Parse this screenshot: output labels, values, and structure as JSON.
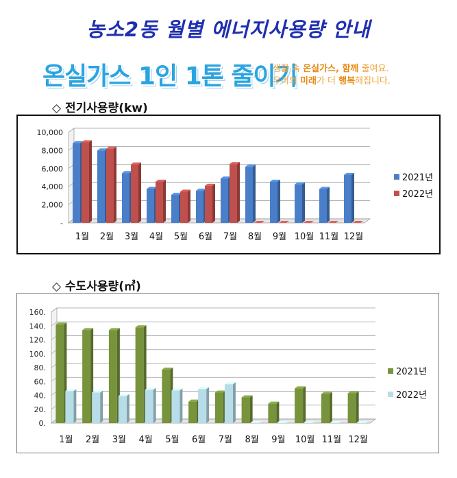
{
  "header": {
    "title": "농소2동 월별 에너지사용량 안내",
    "slogan": "온실가스 1인 1톤 줄이기",
    "slogan_sub_line1_a": "생활 속 ",
    "slogan_sub_line1_b": "온실가스, 함께",
    "slogan_sub_line1_c": " 줄여요.",
    "slogan_sub_line2_a": "우리의 ",
    "slogan_sub_line2_b": "미래",
    "slogan_sub_line2_c": "가 더 ",
    "slogan_sub_line2_d": "행복",
    "slogan_sub_line2_e": "해집니다."
  },
  "sections": {
    "electricity_title": "◇ 전기사용량(kw)",
    "water_title": "◇ 수도사용량(㎥)"
  },
  "chart_data": [
    {
      "type": "bar",
      "title": "◇ 전기사용량(kw)",
      "categories": [
        "1월",
        "2월",
        "3월",
        "4월",
        "5월",
        "6월",
        "7월",
        "8월",
        "9월",
        "10월",
        "11월",
        "12월"
      ],
      "series": [
        {
          "name": "2021년",
          "color": "#4a7ec8",
          "values": [
            8800,
            8000,
            5500,
            3750,
            3100,
            3550,
            4900,
            6200,
            4550,
            4250,
            3750,
            5300
          ]
        },
        {
          "name": "2022년",
          "color": "#c0504d",
          "values": [
            8900,
            8200,
            6450,
            4550,
            3450,
            4100,
            6500,
            0,
            0,
            0,
            0,
            0
          ]
        }
      ],
      "ylim": [
        0,
        10000
      ],
      "yticks": [
        "-",
        "2,000",
        "4,000",
        "6,000",
        "8,000",
        "10,000"
      ],
      "grid": true,
      "legend": "right"
    },
    {
      "type": "bar",
      "title": "◇ 수도사용량(㎥)",
      "categories": [
        "1월",
        "2월",
        "3월",
        "4월",
        "5월",
        "6월",
        "7월",
        "8월",
        "9월",
        "10월",
        "11월",
        "12월"
      ],
      "series": [
        {
          "name": "2021년",
          "color": "#77933c",
          "values": [
            142,
            134,
            134,
            138,
            77,
            31,
            44,
            37,
            28,
            50,
            42,
            43
          ]
        },
        {
          "name": "2022년",
          "color": "#b7dde8",
          "values": [
            46,
            44,
            39,
            48,
            47,
            49,
            56,
            0,
            0,
            0,
            0,
            0
          ]
        }
      ],
      "ylim": [
        0,
        160
      ],
      "yticks": [
        "0.",
        "20.",
        "40.",
        "60.",
        "80.",
        "100.",
        "120.",
        "140.",
        "160."
      ],
      "grid": true,
      "legend": "right"
    }
  ]
}
